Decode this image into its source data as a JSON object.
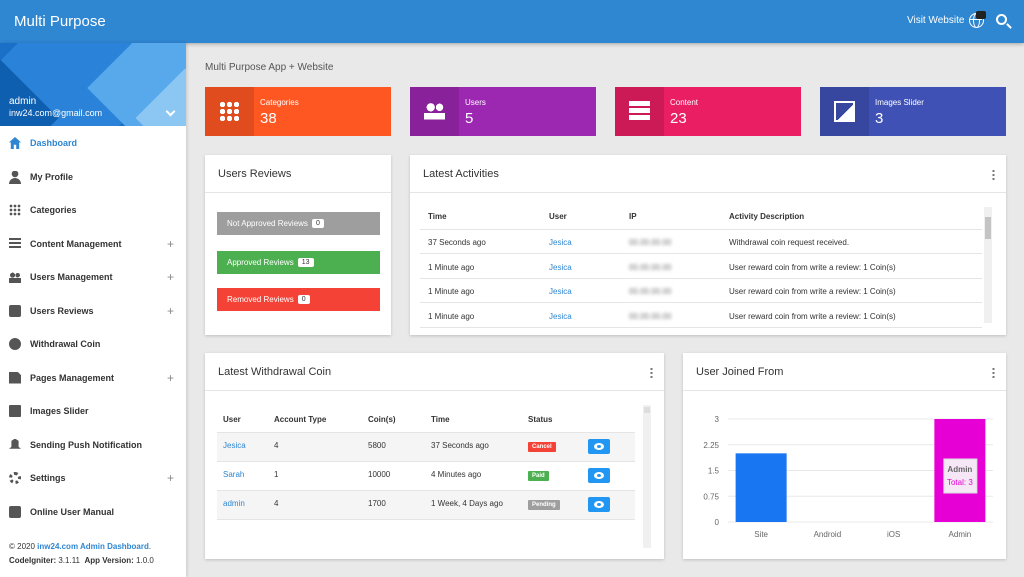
{
  "topbar": {
    "brand": "Multi Purpose",
    "visit_label": "Visit Website",
    "globe_icon": "globe-icon",
    "search_icon": "search-icon",
    "color": "#2f86d1"
  },
  "sidebar": {
    "profile": {
      "name": "admin",
      "email": "inw24.com@gmail.com"
    },
    "items": [
      {
        "label": "Dashboard",
        "icon": "home-icon",
        "active": true,
        "expandable": false
      },
      {
        "label": "My Profile",
        "icon": "person-icon",
        "active": false,
        "expandable": false
      },
      {
        "label": "Categories",
        "icon": "grid-icon",
        "active": false,
        "expandable": false
      },
      {
        "label": "Content Management",
        "icon": "list-icon",
        "active": false,
        "expandable": true
      },
      {
        "label": "Users Management",
        "icon": "group-icon",
        "active": false,
        "expandable": true
      },
      {
        "label": "Users Reviews",
        "icon": "chat-icon",
        "active": false,
        "expandable": true
      },
      {
        "label": "Withdrawal Coin",
        "icon": "coin-icon",
        "active": false,
        "expandable": false
      },
      {
        "label": "Pages Management",
        "icon": "page-icon",
        "active": false,
        "expandable": true
      },
      {
        "label": "Images Slider",
        "icon": "image-icon",
        "active": false,
        "expandable": false
      },
      {
        "label": "Sending Push Notification",
        "icon": "bell-icon",
        "active": false,
        "expandable": false
      },
      {
        "label": "Settings",
        "icon": "gear-icon",
        "active": false,
        "expandable": true
      },
      {
        "label": "Online User Manual",
        "icon": "help-icon",
        "active": false,
        "expandable": false
      }
    ],
    "plus": "+",
    "footer": {
      "copyright": "© 2020",
      "link": "inw24.com Admin Dashboard",
      "period": ".",
      "ci_label": "CodeIgniter:",
      "ci_version": "3.1.11",
      "app_label": "App Version:",
      "app_version": "1.0.0"
    }
  },
  "main": {
    "title": "Multi Purpose App + Website",
    "stats": [
      {
        "label": "Categories",
        "value": "38",
        "icon": "grid-icon",
        "color": "#ff5722"
      },
      {
        "label": "Users",
        "value": "5",
        "icon": "group-icon",
        "color": "#9c27b0"
      },
      {
        "label": "Content",
        "value": "23",
        "icon": "table-icon",
        "color": "#e91e63"
      },
      {
        "label": "Images Slider",
        "value": "3",
        "icon": "image-icon",
        "color": "#3f51b5"
      }
    ]
  },
  "reviews": {
    "title": "Users Reviews",
    "buttons": [
      {
        "label": "Not Approved Reviews",
        "count": "0",
        "color": "#9e9e9e"
      },
      {
        "label": "Approved Reviews",
        "count": "13",
        "color": "#4caf50"
      },
      {
        "label": "Removed Reviews",
        "count": "0",
        "color": "#f44336"
      }
    ]
  },
  "activities": {
    "title": "Latest Activities",
    "headers": [
      "Time",
      "User",
      "IP",
      "Activity Description"
    ],
    "rows": [
      {
        "time": "37 Seconds ago",
        "user": "Jesica",
        "ip": "00.00.00.00",
        "desc": "Withdrawal coin request received."
      },
      {
        "time": "1 Minute ago",
        "user": "Jesica",
        "ip": "00.00.00.00",
        "desc": "User reward coin from write a review: 1 Coin(s)"
      },
      {
        "time": "1 Minute ago",
        "user": "Jesica",
        "ip": "00.00.00.00",
        "desc": "User reward coin from write a review: 1 Coin(s)"
      },
      {
        "time": "1 Minute ago",
        "user": "Jesica",
        "ip": "00.00.00.00",
        "desc": "User reward coin from write a review: 1 Coin(s)"
      }
    ]
  },
  "withdrawal": {
    "title": "Latest Withdrawal Coin",
    "headers": [
      "User",
      "Account Type",
      "Coin(s)",
      "Time",
      "Status"
    ],
    "rows": [
      {
        "user": "Jesica",
        "account": "4",
        "coins": "5800",
        "time": "37 Seconds ago",
        "status": "Cancel",
        "status_color": "#f44336"
      },
      {
        "user": "Sarah",
        "account": "1",
        "coins": "10000",
        "time": "4 Minutes ago",
        "status": "Paid",
        "status_color": "#4caf50"
      },
      {
        "user": "admin",
        "account": "4",
        "coins": "1700",
        "time": "1 Week, 4 Days ago",
        "status": "Pending",
        "status_color": "#9e9e9e"
      }
    ]
  },
  "joined": {
    "title": "User Joined From",
    "tooltip": {
      "label": "Admin",
      "text": "Total: 3"
    }
  },
  "chart_data": {
    "type": "bar",
    "categories": [
      "Site",
      "Android",
      "iOS",
      "Admin"
    ],
    "values": [
      2,
      0,
      0,
      3
    ],
    "colors": [
      "#1976f2",
      "#1976f2",
      "#1976f2",
      "#e600d6"
    ],
    "ylim": [
      0,
      3
    ],
    "yticks": [
      "0",
      "0.75",
      "1.5",
      "2.25",
      "3"
    ],
    "title": "",
    "xlabel": "",
    "ylabel": "",
    "grid": true
  }
}
